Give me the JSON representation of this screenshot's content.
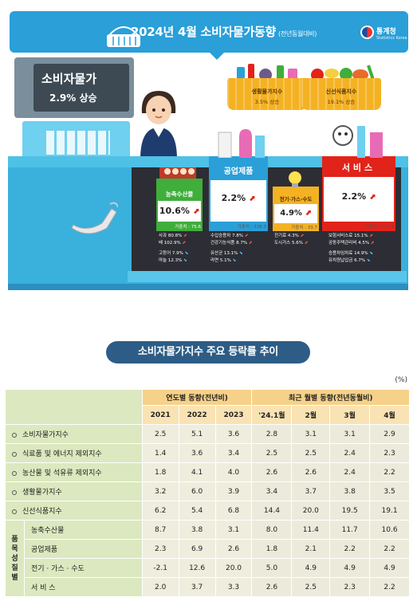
{
  "header": {
    "title": "2024년  4월 소비자물가동향",
    "title_sub": "(전년동월대비)",
    "logo_name": "통계청",
    "logo_en": "Statistics Korea"
  },
  "register": {
    "label": "소비자물가",
    "value": "2.9% 상승"
  },
  "baskets": [
    {
      "label": "생활물가지수",
      "value": "3.5% 상승"
    },
    {
      "label": "신선식품지수",
      "value": "19.1% 상승"
    }
  ],
  "panels": {
    "agri": {
      "name": "농축수산물",
      "value": "10.6%",
      "weight": "가중치 : 75.6",
      "items": [
        {
          "text": "사과 80.8%",
          "dir": "up"
        },
        {
          "text": "배 102.9%",
          "dir": "up"
        },
        {
          "text": "고등어 7.9%",
          "dir": "dn"
        },
        {
          "text": "마늘 12.3%",
          "dir": "dn"
        }
      ]
    },
    "industry": {
      "name": "공업제품",
      "value": "2.2%",
      "weight": "가중치 : 338.3",
      "items": [
        {
          "text": "수입승용차 7.8%",
          "dir": "up"
        },
        {
          "text": "건강기능식품 8.7%",
          "dir": "up"
        },
        {
          "text": "유산균 13.1%",
          "dir": "dn"
        },
        {
          "text": "라면 5.1%",
          "dir": "dn"
        }
      ]
    },
    "utility": {
      "name": "전기·가스·수도",
      "value": "4.9%",
      "weight": "가중치 : 33.7",
      "items": [
        {
          "text": "전기료 4.3%",
          "dir": "up"
        },
        {
          "text": "도시가스 5.6%",
          "dir": "up"
        }
      ]
    },
    "service": {
      "name": "서비스",
      "value": "2.2%",
      "weight": "가중치 : 552.4",
      "items": [
        {
          "text": "보험서비스료 15.1%",
          "dir": "up"
        },
        {
          "text": "공동주택관리비 4.5%",
          "dir": "up"
        },
        {
          "text": "승용차임차료 14.9%",
          "dir": "dn"
        },
        {
          "text": "유치원납입금 6.7%",
          "dir": "dn"
        }
      ]
    }
  },
  "section_title": "소비자물가지수 주요 등락률 추이",
  "unit": "(%)",
  "table": {
    "group_annual": "연도별 동향(전년비)",
    "group_monthly": "최근 월별 동향(전년동월비)",
    "columns": [
      "2021",
      "2022",
      "2023",
      "'24.1월",
      "2월",
      "3월",
      "4월"
    ],
    "vertical_label": "품목성질별",
    "rows": [
      {
        "name": "소비자물가지수",
        "values": [
          "2.5",
          "5.1",
          "3.6",
          "2.8",
          "3.1",
          "3.1",
          "2.9"
        ]
      },
      {
        "name": "식료품 및 에너지 제외지수",
        "values": [
          "1.4",
          "3.6",
          "3.4",
          "2.5",
          "2.5",
          "2.4",
          "2.3"
        ]
      },
      {
        "name": "농산물 및 석유류 제외지수",
        "values": [
          "1.8",
          "4.1",
          "4.0",
          "2.6",
          "2.6",
          "2.4",
          "2.2"
        ]
      },
      {
        "name": "생활물가지수",
        "values": [
          "3.2",
          "6.0",
          "3.9",
          "3.4",
          "3.7",
          "3.8",
          "3.5"
        ]
      },
      {
        "name": "신선식품지수",
        "values": [
          "6.2",
          "5.4",
          "6.8",
          "14.4",
          "20.0",
          "19.5",
          "19.1"
        ]
      }
    ],
    "sub_rows": [
      {
        "name": "농축수산물",
        "values": [
          "8.7",
          "3.8",
          "3.1",
          "8.0",
          "11.4",
          "11.7",
          "10.6"
        ]
      },
      {
        "name": "공업제품",
        "values": [
          "2.3",
          "6.9",
          "2.6",
          "1.8",
          "2.1",
          "2.2",
          "2.2"
        ]
      },
      {
        "name": "전기 · 가스 · 수도",
        "values": [
          "-2.1",
          "12.6",
          "20.0",
          "5.0",
          "4.9",
          "4.9",
          "4.9"
        ]
      },
      {
        "name": "서 비 스",
        "values": [
          "2.0",
          "3.7",
          "3.3",
          "2.6",
          "2.5",
          "2.3",
          "2.2"
        ]
      }
    ]
  },
  "colors": {
    "title_bar": "#2a9fd8",
    "agri_panel": "#3fae3a",
    "industry_panel": "#2a9fd8",
    "utility_panel": "#f4b223",
    "service_panel": "#e2231a",
    "header_fill": "#f6d189",
    "row_fill": "#dce8bf"
  }
}
